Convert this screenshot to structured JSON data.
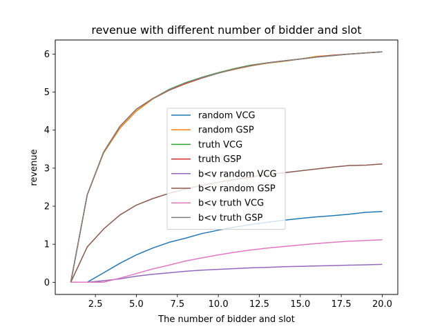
{
  "chart_data": {
    "type": "line",
    "title": "revenue with different number of bidder and slot",
    "xlabel": "The number of bidder and slot",
    "ylabel": "revenue",
    "xlim": [
      0.05,
      20.95
    ],
    "ylim": [
      -0.32,
      6.37
    ],
    "x_ticks": [
      2.5,
      5.0,
      7.5,
      10.0,
      12.5,
      15.0,
      17.5,
      20.0
    ],
    "x_tick_labels": [
      "2.5",
      "5.0",
      "7.5",
      "10.0",
      "12.5",
      "15.0",
      "17.5",
      "20.0"
    ],
    "y_ticks": [
      0,
      1,
      2,
      3,
      4,
      5,
      6
    ],
    "y_tick_labels": [
      "0",
      "1",
      "2",
      "3",
      "4",
      "5",
      "6"
    ],
    "grid": false,
    "legend_position": "center",
    "x": [
      1,
      2,
      3,
      4,
      5,
      6,
      7,
      8,
      9,
      10,
      11,
      12,
      13,
      14,
      15,
      16,
      17,
      18,
      19,
      20
    ],
    "series": [
      {
        "name": "random VCG",
        "color": "#1f77b4",
        "values": [
          0,
          0,
          0.25,
          0.5,
          0.72,
          0.9,
          1.05,
          1.16,
          1.28,
          1.37,
          1.45,
          1.52,
          1.58,
          1.63,
          1.68,
          1.72,
          1.75,
          1.79,
          1.84,
          1.86
        ]
      },
      {
        "name": "random GSP",
        "color": "#ff7f0e",
        "values": [
          0,
          2.3,
          3.4,
          4.05,
          4.5,
          4.82,
          5.05,
          5.22,
          5.37,
          5.5,
          5.6,
          5.69,
          5.76,
          5.81,
          5.87,
          5.94,
          5.97,
          6.0,
          6.03,
          6.06
        ]
      },
      {
        "name": "truth VCG",
        "color": "#2ca02c",
        "values": [
          0,
          2.3,
          3.42,
          4.1,
          4.55,
          4.83,
          5.07,
          5.25,
          5.39,
          5.51,
          5.62,
          5.71,
          5.77,
          5.82,
          5.87,
          5.92,
          5.96,
          6.0,
          6.03,
          6.06
        ]
      },
      {
        "name": "truth GSP",
        "color": "#d62728",
        "values": [
          0,
          2.3,
          3.42,
          4.1,
          4.55,
          4.83,
          5.05,
          5.23,
          5.37,
          5.5,
          5.61,
          5.7,
          5.77,
          5.82,
          5.87,
          5.92,
          5.97,
          6.0,
          6.03,
          6.06
        ]
      },
      {
        "name": "b<v random VCG",
        "color": "#9467bd",
        "values": [
          0,
          0,
          0.04,
          0.09,
          0.16,
          0.21,
          0.25,
          0.29,
          0.32,
          0.34,
          0.36,
          0.38,
          0.39,
          0.41,
          0.42,
          0.43,
          0.44,
          0.45,
          0.46,
          0.47
        ]
      },
      {
        "name": "b<v random GSP",
        "color": "#8c564b",
        "values": [
          0,
          0.93,
          1.4,
          1.77,
          2.03,
          2.2,
          2.34,
          2.45,
          2.55,
          2.63,
          2.7,
          2.77,
          2.83,
          2.88,
          2.93,
          2.98,
          3.03,
          3.07,
          3.08,
          3.11
        ]
      },
      {
        "name": "b<v truth VCG",
        "color": "#e377c2",
        "values": [
          0,
          0,
          0,
          0.11,
          0.23,
          0.35,
          0.45,
          0.56,
          0.64,
          0.72,
          0.79,
          0.85,
          0.9,
          0.94,
          0.98,
          1.02,
          1.05,
          1.08,
          1.1,
          1.12
        ]
      },
      {
        "name": "b<v truth GSP",
        "color": "#7f7f7f",
        "values": [
          0,
          2.3,
          3.42,
          4.1,
          4.55,
          4.83,
          5.06,
          5.24,
          5.38,
          5.5,
          5.61,
          5.7,
          5.77,
          5.82,
          5.87,
          5.92,
          5.96,
          6.0,
          6.03,
          6.06
        ]
      }
    ]
  }
}
